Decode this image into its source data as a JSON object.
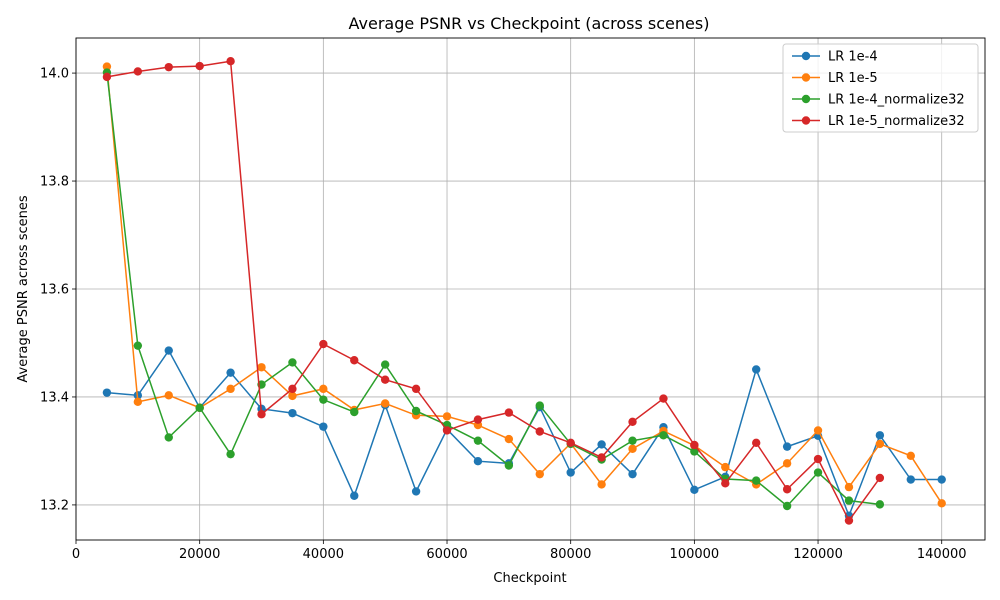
{
  "chart_data": {
    "type": "line",
    "title": "Average PSNR vs Checkpoint (across scenes)",
    "xlabel": "Checkpoint",
    "ylabel": "Average PSNR across scenes",
    "xlim": [
      0,
      147000
    ],
    "ylim": [
      13.135,
      14.065
    ],
    "x_ticks": [
      0,
      20000,
      40000,
      60000,
      80000,
      100000,
      120000,
      140000
    ],
    "x_tick_labels": [
      "0",
      "20000",
      "40000",
      "60000",
      "80000",
      "100000",
      "120000",
      "140000"
    ],
    "y_ticks": [
      13.2,
      13.4,
      13.6,
      13.8,
      14.0
    ],
    "y_tick_labels": [
      "13.2",
      "13.4",
      "13.6",
      "13.8",
      "14.0"
    ],
    "grid": true,
    "legend_position": "top-right",
    "series": [
      {
        "name": "LR 1e-4",
        "color": "#1f77b4",
        "x": [
          5000,
          10000,
          15000,
          20000,
          25000,
          30000,
          35000,
          40000,
          45000,
          50000,
          55000,
          60000,
          65000,
          70000,
          75000,
          80000,
          85000,
          90000,
          95000,
          100000,
          105000,
          110000,
          115000,
          120000,
          125000,
          130000,
          135000,
          140000
        ],
        "values": [
          13.408,
          13.403,
          13.486,
          13.38,
          13.445,
          13.378,
          13.37,
          13.345,
          13.217,
          13.385,
          13.225,
          13.34,
          13.281,
          13.277,
          13.381,
          13.26,
          13.312,
          13.257,
          13.344,
          13.228,
          13.252,
          13.451,
          13.308,
          13.328,
          13.18,
          13.329,
          13.247,
          13.247
        ]
      },
      {
        "name": "LR 1e-5",
        "color": "#ff7f0e",
        "x": [
          5000,
          10000,
          15000,
          20000,
          25000,
          30000,
          35000,
          40000,
          45000,
          50000,
          55000,
          60000,
          65000,
          70000,
          75000,
          80000,
          85000,
          90000,
          95000,
          100000,
          105000,
          110000,
          115000,
          120000,
          125000,
          130000,
          135000,
          140000
        ],
        "values": [
          14.012,
          13.391,
          13.403,
          13.38,
          13.415,
          13.455,
          13.402,
          13.415,
          13.376,
          13.388,
          13.366,
          13.364,
          13.348,
          13.322,
          13.257,
          13.314,
          13.238,
          13.304,
          13.337,
          13.31,
          13.27,
          13.238,
          13.277,
          13.338,
          13.233,
          13.313,
          13.291,
          13.203
        ]
      },
      {
        "name": "LR 1e-4_normalize32",
        "color": "#2ca02c",
        "x": [
          5000,
          10000,
          15000,
          20000,
          25000,
          30000,
          35000,
          40000,
          45000,
          50000,
          55000,
          60000,
          65000,
          70000,
          75000,
          80000,
          85000,
          90000,
          95000,
          100000,
          105000,
          110000,
          115000,
          120000,
          125000,
          130000
        ],
        "values": [
          14.001,
          13.495,
          13.325,
          13.38,
          13.294,
          13.423,
          13.464,
          13.395,
          13.372,
          13.46,
          13.374,
          13.348,
          13.319,
          13.273,
          13.384,
          13.313,
          13.284,
          13.319,
          13.329,
          13.299,
          13.248,
          13.245,
          13.198,
          13.26,
          13.208,
          13.201
        ]
      },
      {
        "name": "LR 1e-5_normalize32",
        "color": "#d62728",
        "x": [
          5000,
          10000,
          15000,
          20000,
          25000,
          30000,
          35000,
          40000,
          45000,
          50000,
          55000,
          60000,
          65000,
          70000,
          75000,
          80000,
          85000,
          90000,
          95000,
          100000,
          105000,
          110000,
          115000,
          120000,
          125000,
          130000
        ],
        "values": [
          13.993,
          14.003,
          14.011,
          14.013,
          14.022,
          13.368,
          13.415,
          13.498,
          13.468,
          13.432,
          13.415,
          13.338,
          13.358,
          13.371,
          13.336,
          13.315,
          13.288,
          13.354,
          13.397,
          13.311,
          13.24,
          13.315,
          13.229,
          13.285,
          13.171,
          13.25
        ]
      }
    ]
  }
}
